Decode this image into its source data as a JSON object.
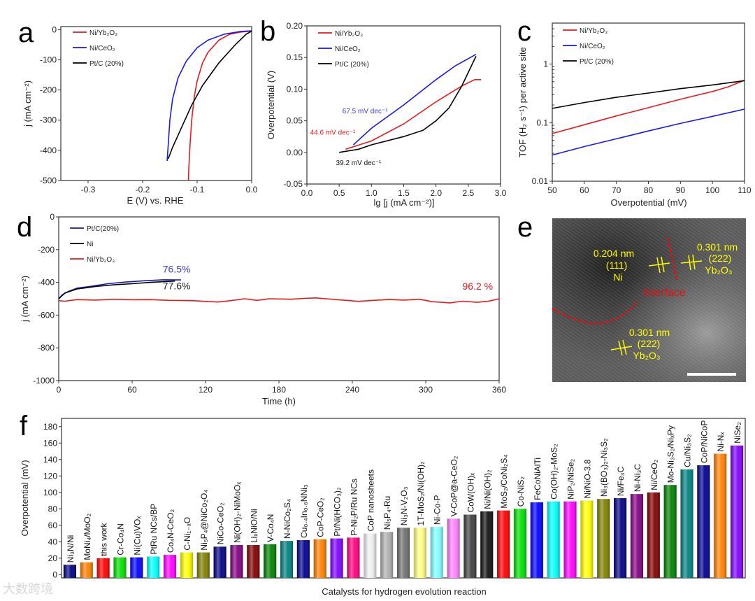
{
  "watermark": "大数跨境",
  "chart_data": [
    {
      "panel": "a",
      "type": "line",
      "xlabel": "E (V) vs. RHE",
      "ylabel": "j (mA cm⁻²)",
      "xlim": [
        -0.35,
        0.0
      ],
      "ylim": [
        -500,
        10
      ],
      "xticks": [
        -0.3,
        -0.2,
        -0.1,
        0.0
      ],
      "xtick_labels": [
        "-0.3",
        "-0.2",
        "-0.1",
        "0.0"
      ],
      "yticks": [
        0,
        -100,
        -200,
        -300,
        -400,
        -500
      ],
      "ytick_labels": [
        "0",
        "-100",
        "-200",
        "-300",
        "-400",
        "-500"
      ],
      "legend": "top-left",
      "series": [
        {
          "name": "Ni/Yb₂O₃",
          "color": "#e8191c",
          "points": [
            [
              0,
              -5
            ],
            [
              -0.02,
              -8
            ],
            [
              -0.04,
              -15
            ],
            [
              -0.06,
              -35
            ],
            [
              -0.08,
              -75
            ],
            [
              -0.09,
              -110
            ],
            [
              -0.1,
              -170
            ],
            [
              -0.105,
              -220
            ],
            [
              -0.11,
              -300
            ],
            [
              -0.113,
              -380
            ],
            [
              -0.115,
              -450
            ],
            [
              -0.116,
              -500
            ]
          ]
        },
        {
          "name": "Ni/CeO₂",
          "color": "#1a1ae6",
          "points": [
            [
              0,
              -4
            ],
            [
              -0.02,
              -6
            ],
            [
              -0.05,
              -15
            ],
            [
              -0.08,
              -35
            ],
            [
              -0.1,
              -60
            ],
            [
              -0.12,
              -105
            ],
            [
              -0.135,
              -160
            ],
            [
              -0.145,
              -230
            ],
            [
              -0.15,
              -300
            ],
            [
              -0.153,
              -380
            ],
            [
              -0.155,
              -435
            ]
          ]
        },
        {
          "name": "Pt/C (20%)",
          "color": "#000000",
          "points": [
            [
              0,
              -5
            ],
            [
              -0.01,
              -15
            ],
            [
              -0.03,
              -50
            ],
            [
              -0.06,
              -110
            ],
            [
              -0.09,
              -185
            ],
            [
              -0.11,
              -250
            ],
            [
              -0.13,
              -330
            ],
            [
              -0.145,
              -390
            ],
            [
              -0.153,
              -428
            ]
          ]
        }
      ]
    },
    {
      "panel": "b",
      "type": "line",
      "xlabel": "lg [j (mA cm⁻²)]",
      "ylabel": "Overpotential (V)",
      "xlim": [
        0,
        3
      ],
      "ylim": [
        -0.05,
        0.2
      ],
      "xticks": [
        0,
        0.5,
        1,
        1.5,
        2,
        2.5,
        3
      ],
      "xtick_labels": [
        "0.0",
        "0.5",
        "1.0",
        "1.5",
        "2.0",
        "2.5",
        "3.0"
      ],
      "yticks": [
        -0.05,
        0,
        0.05,
        0.1,
        0.15,
        0.2
      ],
      "ytick_labels": [
        "-0.05",
        "0.00",
        "0.05",
        "0.10",
        "0.15",
        "0.20"
      ],
      "legend": "top-left",
      "series": [
        {
          "name": "Ni/Yb₂O₃",
          "color": "#e8191c",
          "points": [
            [
              0.6,
              0.005
            ],
            [
              1.0,
              0.018
            ],
            [
              1.5,
              0.045
            ],
            [
              2.0,
              0.08
            ],
            [
              2.4,
              0.105
            ],
            [
              2.6,
              0.115
            ],
            [
              2.7,
              0.115
            ]
          ]
        },
        {
          "name": "Ni/CeO₂",
          "color": "#1a1ae6",
          "points": [
            [
              0.72,
              0.012
            ],
            [
              1.0,
              0.038
            ],
            [
              1.5,
              0.075
            ],
            [
              2.0,
              0.115
            ],
            [
              2.3,
              0.137
            ],
            [
              2.62,
              0.155
            ]
          ]
        },
        {
          "name": "Pt/C (20%)",
          "color": "#000000",
          "points": [
            [
              0.5,
              0
            ],
            [
              0.8,
              0.005
            ],
            [
              1.0,
              0.012
            ],
            [
              1.5,
              0.025
            ],
            [
              1.8,
              0.035
            ],
            [
              2.0,
              0.05
            ],
            [
              2.2,
              0.07
            ],
            [
              2.4,
              0.105
            ],
            [
              2.62,
              0.152
            ]
          ]
        }
      ],
      "annotations": [
        {
          "text": "67.5 mV dec⁻¹",
          "color": "#3a3ae0",
          "at": [
            0.55,
            0.062
          ]
        },
        {
          "text": "44.6 mV dec⁻¹",
          "color": "#e8191c",
          "at": [
            0.05,
            0.028
          ]
        },
        {
          "text": "39.2 mV dec⁻¹",
          "color": "#111111",
          "at": [
            0.45,
            -0.02
          ]
        }
      ]
    },
    {
      "panel": "c",
      "type": "line",
      "yscale": "log",
      "xlabel": "Overpotential (mV)",
      "ylabel": "TOF (H₂ s⁻¹) per active site",
      "xlim": [
        50,
        110
      ],
      "ylim": [
        0.01,
        5
      ],
      "xticks": [
        50,
        60,
        70,
        80,
        90,
        100,
        110
      ],
      "xtick_labels": [
        "50",
        "60",
        "70",
        "80",
        "90",
        "100",
        "110"
      ],
      "yticks": [
        0.01,
        0.1,
        1
      ],
      "ytick_labels": [
        "0.01",
        "0.1",
        "1"
      ],
      "legend": "top-left",
      "series": [
        {
          "name": "Ni/Yb₂O₃",
          "color": "#e8191c",
          "points": [
            [
              50,
              0.065
            ],
            [
              60,
              0.092
            ],
            [
              70,
              0.13
            ],
            [
              80,
              0.18
            ],
            [
              90,
              0.25
            ],
            [
              100,
              0.34
            ],
            [
              105,
              0.41
            ],
            [
              110,
              0.53
            ]
          ]
        },
        {
          "name": "Ni/CeO₂",
          "color": "#1a1ae6",
          "points": [
            [
              50,
              0.028
            ],
            [
              60,
              0.039
            ],
            [
              70,
              0.053
            ],
            [
              80,
              0.072
            ],
            [
              90,
              0.097
            ],
            [
              100,
              0.128
            ],
            [
              110,
              0.17
            ]
          ]
        },
        {
          "name": "Pt/C (20%)",
          "color": "#000000",
          "points": [
            [
              50,
              0.175
            ],
            [
              60,
              0.22
            ],
            [
              70,
              0.27
            ],
            [
              80,
              0.32
            ],
            [
              90,
              0.38
            ],
            [
              100,
              0.44
            ],
            [
              110,
              0.52
            ]
          ]
        }
      ]
    },
    {
      "panel": "d",
      "type": "line",
      "xlabel": "Time (h)",
      "ylabel": "j (mA cm⁻²)",
      "xlim": [
        0,
        360
      ],
      "ylim": [
        -1000,
        0
      ],
      "xticks": [
        0,
        60,
        120,
        180,
        240,
        300,
        360
      ],
      "xtick_labels": [
        "0",
        "60",
        "120",
        "180",
        "240",
        "300",
        "360"
      ],
      "yticks": [
        0,
        -200,
        -400,
        -600,
        -800,
        -1000
      ],
      "ytick_labels": [
        "0",
        "-200",
        "-400",
        "-600",
        "-800",
        "-1000"
      ],
      "legend": "top-left",
      "series": [
        {
          "name": "Pt/C(20%)",
          "color": "#1a1ab0",
          "points": [
            [
              0,
              -500
            ],
            [
              3,
              -475
            ],
            [
              8,
              -455
            ],
            [
              15,
              -435
            ],
            [
              25,
              -425
            ],
            [
              40,
              -408
            ],
            [
              55,
              -398
            ],
            [
              70,
              -390
            ],
            [
              85,
              -384
            ],
            [
              100,
              -385
            ]
          ]
        },
        {
          "name": "Ni",
          "color": "#000000",
          "points": [
            [
              0,
              -500
            ],
            [
              5,
              -465
            ],
            [
              15,
              -440
            ],
            [
              30,
              -425
            ],
            [
              45,
              -415
            ],
            [
              60,
              -408
            ],
            [
              75,
              -400
            ],
            [
              95,
              -392
            ]
          ]
        },
        {
          "name": "Ni/Yb₂O₃",
          "color": "#e8191c",
          "points": [
            [
              0,
              -512
            ],
            [
              5,
              -515
            ],
            [
              15,
              -505
            ],
            [
              30,
              -508
            ],
            [
              45,
              -503
            ],
            [
              60,
              -506
            ],
            [
              75,
              -505
            ],
            [
              90,
              -510
            ],
            [
              110,
              -512
            ],
            [
              125,
              -518
            ],
            [
              130,
              -520
            ],
            [
              140,
              -512
            ],
            [
              152,
              -500
            ],
            [
              162,
              -510
            ],
            [
              172,
              -500
            ],
            [
              190,
              -503
            ],
            [
              200,
              -498
            ],
            [
              210,
              -495
            ],
            [
              222,
              -502
            ],
            [
              232,
              -508
            ],
            [
              245,
              -516
            ],
            [
              258,
              -510
            ],
            [
              270,
              -504
            ],
            [
              282,
              -508
            ],
            [
              295,
              -503
            ],
            [
              305,
              -518
            ],
            [
              320,
              -525
            ],
            [
              330,
              -515
            ],
            [
              342,
              -522
            ],
            [
              352,
              -514
            ],
            [
              360,
              -500
            ]
          ]
        }
      ],
      "annotations": [
        {
          "text": "76.5%",
          "color": "#3a3ae0",
          "at": [
            85,
            -340
          ]
        },
        {
          "text": "77.6%",
          "color": "#222222",
          "at": [
            85,
            -442
          ]
        },
        {
          "text": "96.2 %",
          "color": "#e8191c",
          "at": [
            330,
            -445
          ]
        }
      ]
    },
    {
      "panel": "f",
      "type": "bar",
      "xlabel": "Catalysts for hydrogen evolution reaction",
      "ylabel": "Overpotential (mV)",
      "ylim": [
        -4,
        190
      ],
      "yticks": [
        0,
        20,
        40,
        60,
        80,
        100,
        120,
        140,
        160,
        180
      ],
      "ytick_labels": [
        "0",
        "20",
        "40",
        "60",
        "80",
        "100",
        "120",
        "140",
        "160",
        "180"
      ],
      "highlight_color": "#e8191c",
      "categories": [
        "Ni₃N/Ni",
        "MoNi₄/MoO₂",
        "this work",
        "Cr-Co₄N",
        "Ni(Cu)VOₓ",
        "PtRu NCs/BP",
        "Co₄N-CeO₂",
        "C-Ni₁₋ₓO",
        "Ni₅P₄@NiCo₂O₄",
        "NiCo-CeO₂",
        "Ni(OH)₂-NiMoOₓ",
        "LiₓNiO/Ni",
        "V-Co₄N",
        "N-NiCo₂S₄",
        "Cu₀.₄In₀.₆NNi₃",
        "CoP-CeO₂",
        "Pt/Ni(HCO₃)₂",
        "P-Ni₂P/Ru NCs",
        "CoP nanosheets",
        "Ni₅P₄-Ru",
        "Ni₃N-V₂O₃",
        "1T-MoS₂/Ni(OH)₂",
        "Ni-Co-P",
        "V-CoP@a-CeO₂",
        "CoW(OH)ₓ",
        "Ni/Ni(OH)₂",
        "MoS₂/CoNi₂S₄",
        "Co-NiS₂",
        "FeCoNiAlTi",
        "Co(OH)₂-MoS₂",
        "NiP₂/NiSe₂",
        "Ni/NiO-3.8",
        "Ni₃(BO₃)₂-Ni₃S₂",
        "Ni/Fe₃C",
        "Ni-Ni₃C",
        "Ni/CeO₂",
        "Mo-Ni₃S₂/NiₓPy",
        "Cu/Ni₃S₂",
        "CoP/NiCoP",
        "Ni-Nₓ",
        "NiSe₂"
      ],
      "values": [
        12,
        15,
        20,
        21,
        21,
        22,
        24,
        27,
        27,
        34,
        36,
        36,
        37,
        41,
        42,
        43,
        44,
        45,
        50,
        52,
        57,
        57,
        58,
        68,
        73,
        77,
        78,
        80,
        88,
        89,
        89,
        90,
        92,
        93,
        98,
        100,
        109,
        128,
        133,
        147,
        157
      ],
      "colors": [
        "#000080",
        "#ff8000",
        "#ff0000",
        "#00e000",
        "#0000ff",
        "#00ffff",
        "#ff00ff",
        "#ffff00",
        "#808000",
        "#000080",
        "#800080",
        "#800000",
        "#008000",
        "#008080",
        "#000090",
        "#ff8000",
        "#8000ff",
        "#ff0080",
        "#f0f0f0",
        "#b0b0b0",
        "#707070",
        "#ffff80",
        "#80ffff",
        "#ff80ff",
        "#404040",
        "#101010",
        "#ff0000",
        "#00e000",
        "#0000ff",
        "#00ffff",
        "#ff00ff",
        "#ffff00",
        "#808000",
        "#000080",
        "#800080",
        "#800000",
        "#008000",
        "#008080",
        "#000090",
        "#ff8000",
        "#8000ff"
      ]
    }
  ],
  "panel_e": {
    "left_spacing": "0.204 nm",
    "left_plane": "(111)",
    "left_phase": "Ni",
    "right_spacing": "0.301 nm",
    "right_plane": "(222)",
    "right_phase": "Yb₂O₃",
    "bottom_spacing": "0.301 nm",
    "bottom_plane": "(222)",
    "bottom_phase": "Yb₂O₃",
    "interface_label": "interface"
  },
  "panel_labels": [
    "a",
    "b",
    "c",
    "d",
    "e",
    "f"
  ]
}
